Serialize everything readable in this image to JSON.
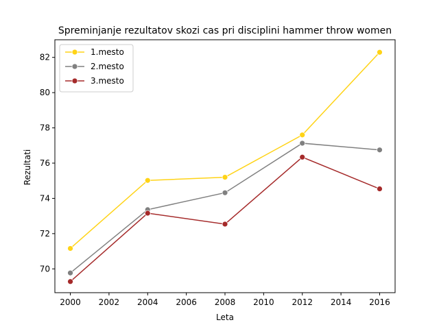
{
  "chart_data": {
    "type": "line",
    "title": "Spreminjanje rezultatov skozi cas pri disciplini hammer throw women",
    "xlabel": "Leta",
    "ylabel": "Rezultati",
    "x": [
      2000,
      2004,
      2008,
      2012,
      2016
    ],
    "xlim": [
      1999.2,
      2016.8
    ],
    "ylim": [
      68.65,
      83.0
    ],
    "xticks": [
      2000,
      2002,
      2004,
      2006,
      2008,
      2010,
      2012,
      2014,
      2016
    ],
    "yticks": [
      70,
      72,
      74,
      76,
      78,
      80,
      82
    ],
    "grid": false,
    "legend_position": "top-left",
    "series": [
      {
        "name": "1.mesto",
        "color": "#FFD316",
        "values": [
          71.16,
          75.02,
          75.2,
          77.6,
          82.29
        ]
      },
      {
        "name": "2.mesto",
        "color": "#808080",
        "values": [
          69.77,
          73.36,
          74.32,
          77.13,
          76.75
        ]
      },
      {
        "name": "3.mesto",
        "color": "#A52A2A",
        "values": [
          69.28,
          73.16,
          72.54,
          76.34,
          74.54
        ]
      }
    ]
  }
}
